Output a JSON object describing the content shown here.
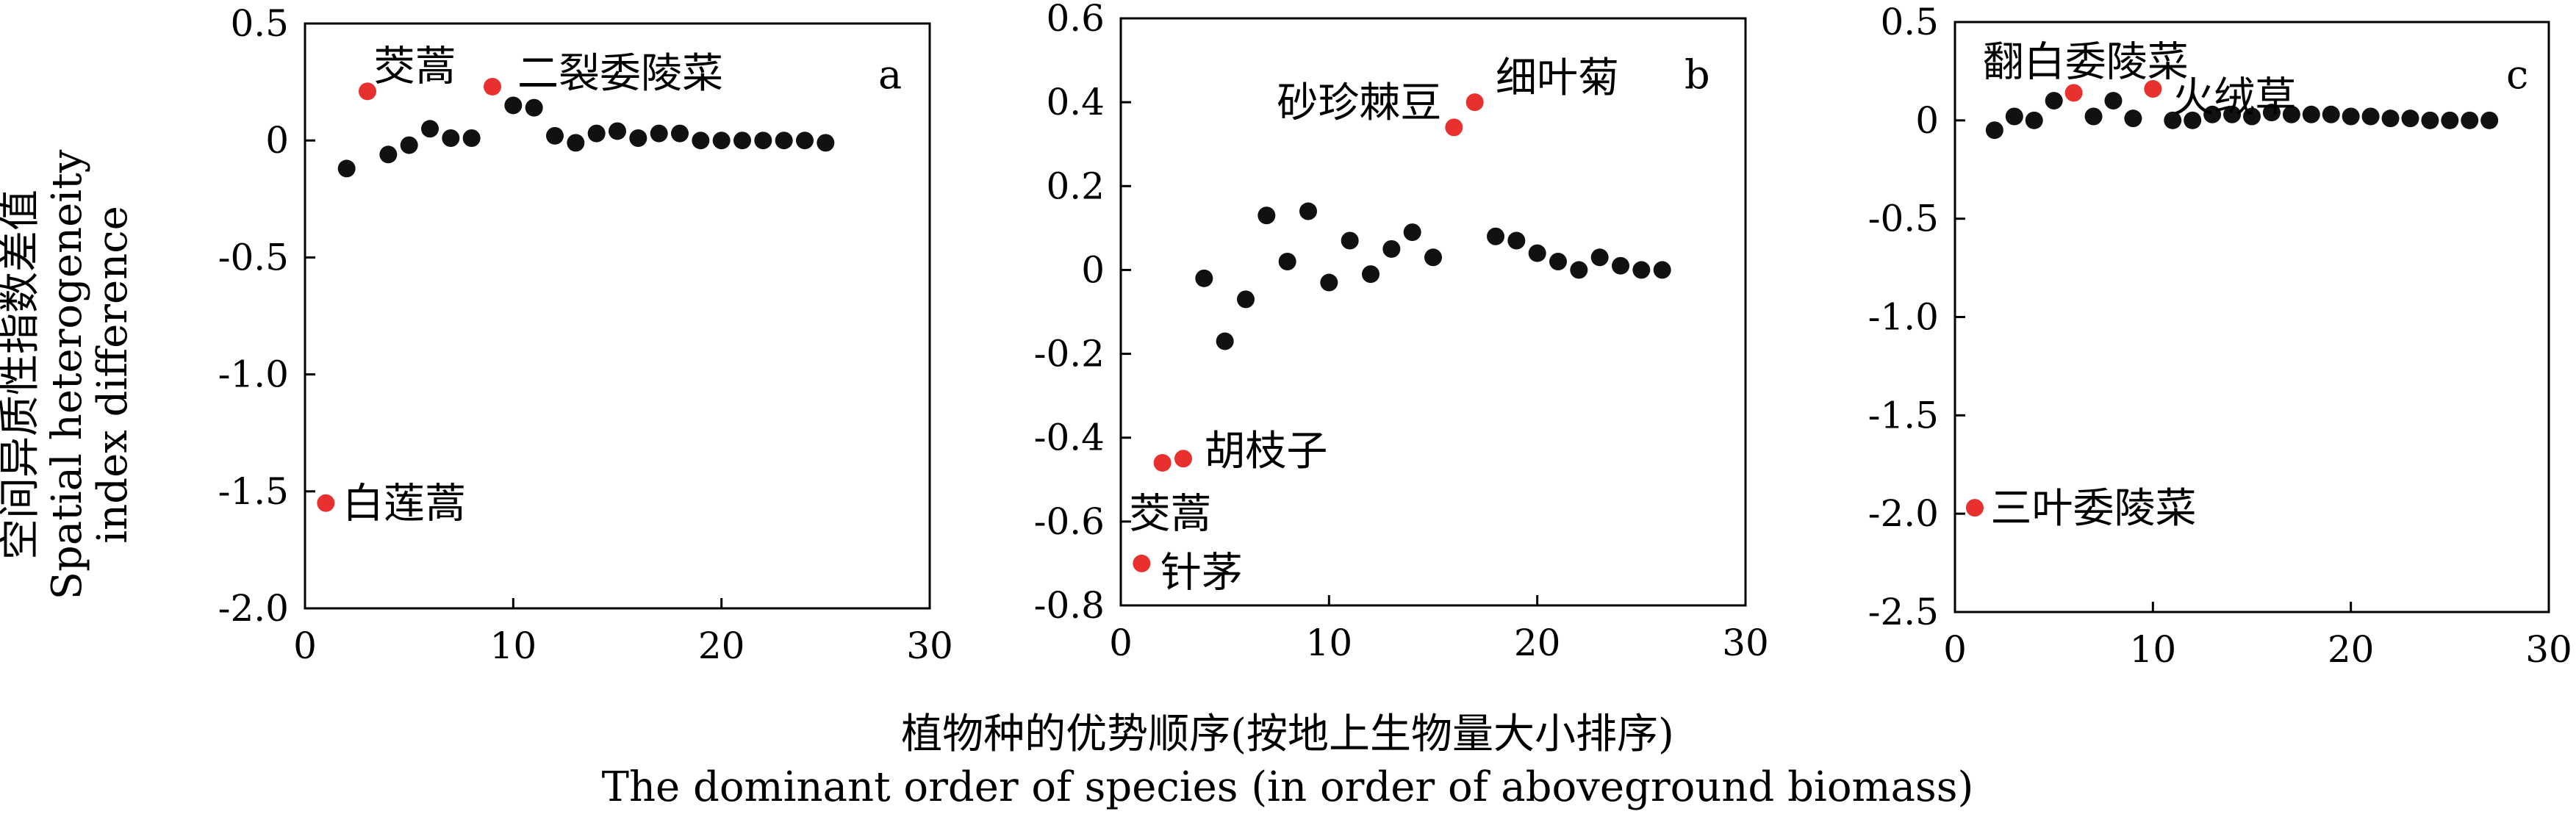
{
  "figure": {
    "ylabel_cn": "空间异质性指数差值",
    "ylabel_en_1": "Spatial heterogeneity",
    "ylabel_en_2": "index difference",
    "xlabel_cn": "植物种的优势顺序(按地上生物量大小排序)",
    "xlabel_en": "The dominant order of species (in order of aboveground biomass)"
  },
  "chart_data": [
    {
      "type": "scatter",
      "panel": "a",
      "xlim": [
        0,
        30
      ],
      "ylim": [
        -2.0,
        0.5
      ],
      "xticks": [
        0,
        10,
        20,
        30
      ],
      "xtick_labels": [
        "0",
        "10",
        "20",
        "30"
      ],
      "yticks": [
        0.5,
        0,
        -0.5,
        -1.0,
        -1.5,
        -2.0
      ],
      "ytick_labels": [
        "0.5",
        "0",
        "-0.5",
        "-1.0",
        "-1.5",
        "-2.0"
      ],
      "marker_colors": {
        "normal": "#111111",
        "highlight": "#e8312f"
      },
      "points": [
        {
          "x": 1,
          "y": -1.55,
          "highlight": true
        },
        {
          "x": 2,
          "y": -0.12
        },
        {
          "x": 3,
          "y": 0.21,
          "highlight": true
        },
        {
          "x": 4,
          "y": -0.06
        },
        {
          "x": 5,
          "y": -0.02
        },
        {
          "x": 6,
          "y": 0.05
        },
        {
          "x": 7,
          "y": 0.01
        },
        {
          "x": 8,
          "y": 0.01
        },
        {
          "x": 9,
          "y": 0.23,
          "highlight": true
        },
        {
          "x": 10,
          "y": 0.15
        },
        {
          "x": 11,
          "y": 0.14
        },
        {
          "x": 12,
          "y": 0.02
        },
        {
          "x": 13,
          "y": -0.01
        },
        {
          "x": 14,
          "y": 0.03
        },
        {
          "x": 15,
          "y": 0.04
        },
        {
          "x": 16,
          "y": 0.01
        },
        {
          "x": 17,
          "y": 0.03
        },
        {
          "x": 18,
          "y": 0.03
        },
        {
          "x": 19,
          "y": 0.0
        },
        {
          "x": 20,
          "y": 0.0
        },
        {
          "x": 21,
          "y": 0.0
        },
        {
          "x": 22,
          "y": 0.0
        },
        {
          "x": 23,
          "y": 0.0
        },
        {
          "x": 24,
          "y": 0.0
        },
        {
          "x": 25,
          "y": -0.01
        }
      ],
      "annotations": [
        {
          "text": "白莲蒿",
          "x": 1.8,
          "y": -1.55,
          "anchor": "start"
        },
        {
          "text": "茭蒿",
          "x": 3.3,
          "y": 0.32,
          "anchor": "start"
        },
        {
          "text": "二裂委陵菜",
          "x": 10.2,
          "y": 0.29,
          "anchor": "start"
        }
      ]
    },
    {
      "type": "scatter",
      "panel": "b",
      "xlim": [
        0,
        30
      ],
      "ylim": [
        -0.8,
        0.6
      ],
      "xticks": [
        0,
        10,
        20,
        30
      ],
      "xtick_labels": [
        "0",
        "10",
        "20",
        "30"
      ],
      "yticks": [
        0.6,
        0.4,
        0.2,
        0,
        -0.2,
        -0.4,
        -0.6,
        -0.8
      ],
      "ytick_labels": [
        "0.6",
        "0.4",
        "0.2",
        "0",
        "-0.2",
        "-0.4",
        "-0.6",
        "-0.8"
      ],
      "marker_colors": {
        "normal": "#111111",
        "highlight": "#e8312f"
      },
      "points": [
        {
          "x": 1,
          "y": -0.7,
          "highlight": true
        },
        {
          "x": 2,
          "y": -0.46,
          "highlight": true
        },
        {
          "x": 3,
          "y": -0.45,
          "highlight": true
        },
        {
          "x": 4,
          "y": -0.02
        },
        {
          "x": 5,
          "y": -0.17
        },
        {
          "x": 6,
          "y": -0.07
        },
        {
          "x": 7,
          "y": 0.13
        },
        {
          "x": 8,
          "y": 0.02
        },
        {
          "x": 9,
          "y": 0.14
        },
        {
          "x": 10,
          "y": -0.03
        },
        {
          "x": 11,
          "y": 0.07
        },
        {
          "x": 12,
          "y": -0.01
        },
        {
          "x": 13,
          "y": 0.05
        },
        {
          "x": 14,
          "y": 0.09
        },
        {
          "x": 15,
          "y": 0.03
        },
        {
          "x": 16,
          "y": 0.34,
          "highlight": true
        },
        {
          "x": 17,
          "y": 0.4,
          "highlight": true
        },
        {
          "x": 18,
          "y": 0.08
        },
        {
          "x": 19,
          "y": 0.07
        },
        {
          "x": 20,
          "y": 0.04
        },
        {
          "x": 21,
          "y": 0.02
        },
        {
          "x": 22,
          "y": 0.0
        },
        {
          "x": 23,
          "y": 0.03
        },
        {
          "x": 24,
          "y": 0.01
        },
        {
          "x": 25,
          "y": 0.0
        },
        {
          "x": 26,
          "y": 0.0
        }
      ],
      "annotations": [
        {
          "text": "针茅",
          "x": 1.9,
          "y": -0.72,
          "anchor": "start"
        },
        {
          "text": "茭蒿",
          "x": 0.4,
          "y": -0.58,
          "anchor": "start"
        },
        {
          "text": "胡枝子",
          "x": 4.0,
          "y": -0.43,
          "anchor": "start"
        },
        {
          "text": "砂珍棘豆",
          "x": 15.4,
          "y": 0.4,
          "anchor": "end"
        },
        {
          "text": "细叶菊",
          "x": 18.0,
          "y": 0.46,
          "anchor": "start"
        }
      ]
    },
    {
      "type": "scatter",
      "panel": "c",
      "xlim": [
        0,
        30
      ],
      "ylim": [
        -2.5,
        0.5
      ],
      "xticks": [
        0,
        10,
        20,
        30
      ],
      "xtick_labels": [
        "0",
        "10",
        "20",
        "30"
      ],
      "yticks": [
        0.5,
        0,
        -0.5,
        -1.0,
        -1.5,
        -2.0,
        -2.5
      ],
      "ytick_labels": [
        "0.5",
        "0",
        "-0.5",
        "-1.0",
        "-1.5",
        "-2.0",
        "-2.5"
      ],
      "marker_colors": {
        "normal": "#111111",
        "highlight": "#e8312f"
      },
      "points": [
        {
          "x": 1,
          "y": -1.97,
          "highlight": true
        },
        {
          "x": 2,
          "y": -0.05
        },
        {
          "x": 3,
          "y": 0.02
        },
        {
          "x": 4,
          "y": 0.0
        },
        {
          "x": 5,
          "y": 0.1
        },
        {
          "x": 6,
          "y": 0.14,
          "highlight": true
        },
        {
          "x": 7,
          "y": 0.02
        },
        {
          "x": 8,
          "y": 0.1
        },
        {
          "x": 9,
          "y": 0.01
        },
        {
          "x": 10,
          "y": 0.16,
          "highlight": true
        },
        {
          "x": 11,
          "y": 0.0
        },
        {
          "x": 12,
          "y": 0.0
        },
        {
          "x": 13,
          "y": 0.03
        },
        {
          "x": 14,
          "y": 0.03
        },
        {
          "x": 15,
          "y": 0.02
        },
        {
          "x": 16,
          "y": 0.04
        },
        {
          "x": 17,
          "y": 0.03
        },
        {
          "x": 18,
          "y": 0.03
        },
        {
          "x": 19,
          "y": 0.03
        },
        {
          "x": 20,
          "y": 0.02
        },
        {
          "x": 21,
          "y": 0.02
        },
        {
          "x": 22,
          "y": 0.01
        },
        {
          "x": 23,
          "y": 0.01
        },
        {
          "x": 24,
          "y": 0.0
        },
        {
          "x": 25,
          "y": 0.0
        },
        {
          "x": 26,
          "y": 0.0
        },
        {
          "x": 27,
          "y": 0.0
        }
      ],
      "annotations": [
        {
          "text": "三叶委陵菜",
          "x": 1.8,
          "y": -1.97,
          "anchor": "start"
        },
        {
          "text": "翻白委陵菜",
          "x": 1.4,
          "y": 0.3,
          "anchor": "start"
        },
        {
          "text": "火绒草",
          "x": 11.0,
          "y": 0.12,
          "anchor": "start"
        }
      ]
    }
  ]
}
